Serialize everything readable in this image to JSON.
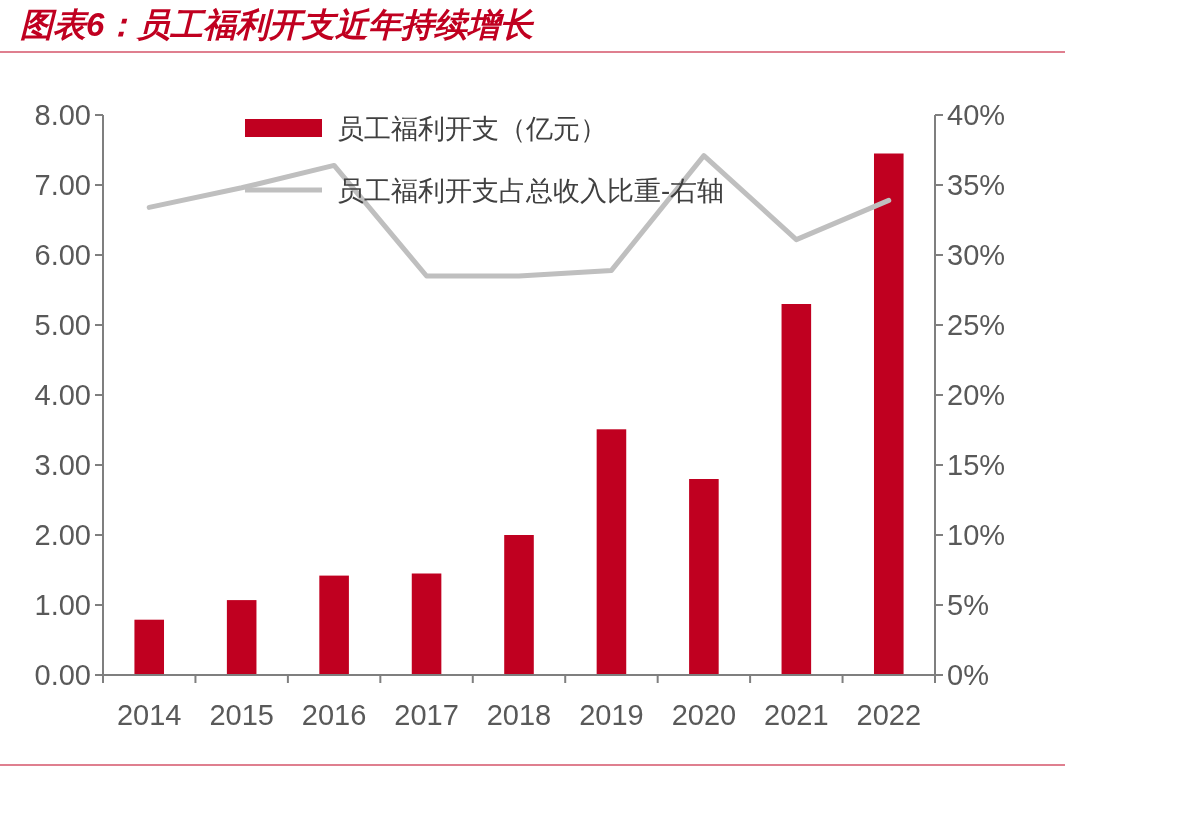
{
  "chart_data": {
    "type": "bar",
    "title": "图表6：员工福利开支近年持续增长",
    "categories": [
      "2014",
      "2015",
      "2016",
      "2017",
      "2018",
      "2019",
      "2020",
      "2021",
      "2022"
    ],
    "series": [
      {
        "name": "员工福利开支（亿元）",
        "color": "#c00020",
        "values": [
          0.79,
          1.07,
          1.42,
          1.45,
          2.0,
          3.51,
          2.8,
          5.3,
          7.45
        ]
      },
      {
        "name": "员工福利开支占总收入比重-右轴",
        "type": "line",
        "axis": "y2",
        "color": "#bfbfbf",
        "values": [
          33.4,
          34.8,
          36.4,
          28.5,
          28.5,
          28.9,
          37.1,
          31.1,
          33.9
        ]
      }
    ],
    "ylim": [
      0,
      8
    ],
    "yticks": [
      {
        "value": 0,
        "label": "0.00"
      },
      {
        "value": 1,
        "label": "1.00"
      },
      {
        "value": 2,
        "label": "2.00"
      },
      {
        "value": 3,
        "label": "3.00"
      },
      {
        "value": 4,
        "label": "4.00"
      },
      {
        "value": 5,
        "label": "5.00"
      },
      {
        "value": 6,
        "label": "6.00"
      },
      {
        "value": 7,
        "label": "7.00"
      },
      {
        "value": 8,
        "label": "8.00"
      }
    ],
    "y2lim": [
      0,
      40
    ],
    "y2ticks": [
      {
        "value": 0,
        "label": "0%"
      },
      {
        "value": 5,
        "label": "5%"
      },
      {
        "value": 10,
        "label": "10%"
      },
      {
        "value": 15,
        "label": "15%"
      },
      {
        "value": 20,
        "label": "20%"
      },
      {
        "value": 25,
        "label": "25%"
      },
      {
        "value": 30,
        "label": "30%"
      },
      {
        "value": 35,
        "label": "35%"
      },
      {
        "value": 40,
        "label": "40%"
      }
    ],
    "legend": "top",
    "grid": false
  }
}
